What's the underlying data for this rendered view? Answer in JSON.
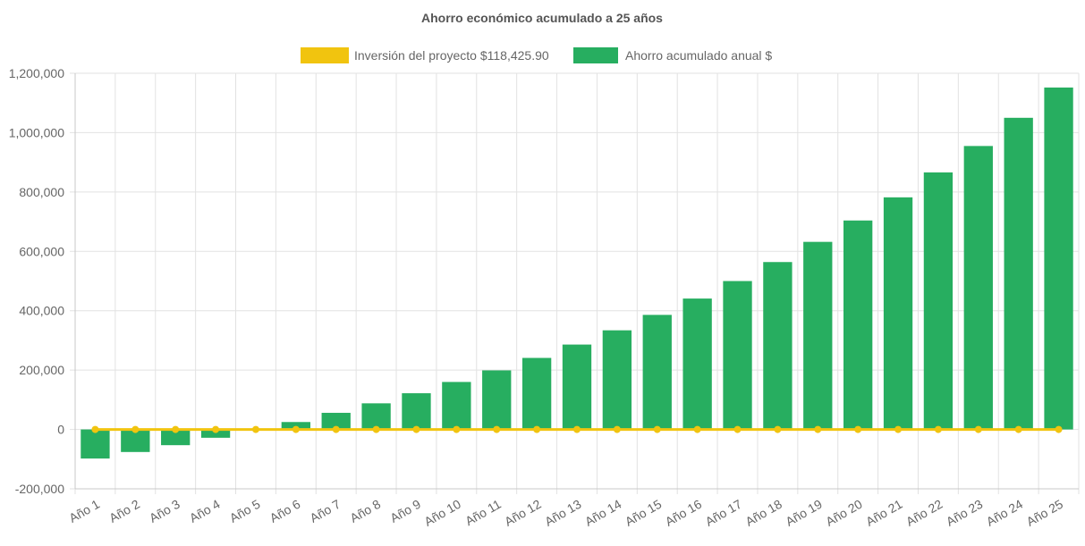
{
  "colors": {
    "investment": "#f1c40f",
    "savings": "#27ae60",
    "grid": "#e2e2e2",
    "axis": "#c8c8c8",
    "text": "#666666",
    "title": "#555555"
  },
  "chart_data": {
    "type": "bar",
    "title": "Ahorro económico acumulado a 25 años",
    "xlabel": "",
    "ylabel": "",
    "legend_position": "top",
    "grid": true,
    "ylim": [
      -200000,
      1200000
    ],
    "yticks": [
      "1,200,000",
      "1,000,000",
      "800,000",
      "600,000",
      "400,000",
      "200,000",
      "0",
      "-200,000"
    ],
    "categories": [
      "Año 1",
      "Año 2",
      "Año 3",
      "Año 4",
      "Año 5",
      "Año 6",
      "Año 7",
      "Año 8",
      "Año 9",
      "Año 10",
      "Año 11",
      "Año 12",
      "Año 13",
      "Año 14",
      "Año 15",
      "Año 16",
      "Año 17",
      "Año 18",
      "Año 19",
      "Año 20",
      "Año 21",
      "Año 22",
      "Año 23",
      "Año 24",
      "Año 25"
    ],
    "series": [
      {
        "name": "Inversión del proyecto $118,425.90",
        "type": "line",
        "color": "#f1c40f",
        "values": [
          0,
          0,
          0,
          0,
          0,
          0,
          0,
          0,
          0,
          0,
          0,
          0,
          0,
          0,
          0,
          0,
          0,
          0,
          0,
          0,
          0,
          0,
          0,
          0,
          0
        ]
      },
      {
        "name": "Ahorro acumulado anual $",
        "type": "bar",
        "color": "#27ae60",
        "values": [
          -98000,
          -76000,
          -53000,
          -28000,
          0,
          25000,
          56000,
          88000,
          122000,
          160000,
          199000,
          241000,
          286000,
          334000,
          386000,
          441000,
          500000,
          564000,
          632000,
          704000,
          782000,
          866000,
          955000,
          1050000,
          1152000
        ]
      }
    ]
  }
}
